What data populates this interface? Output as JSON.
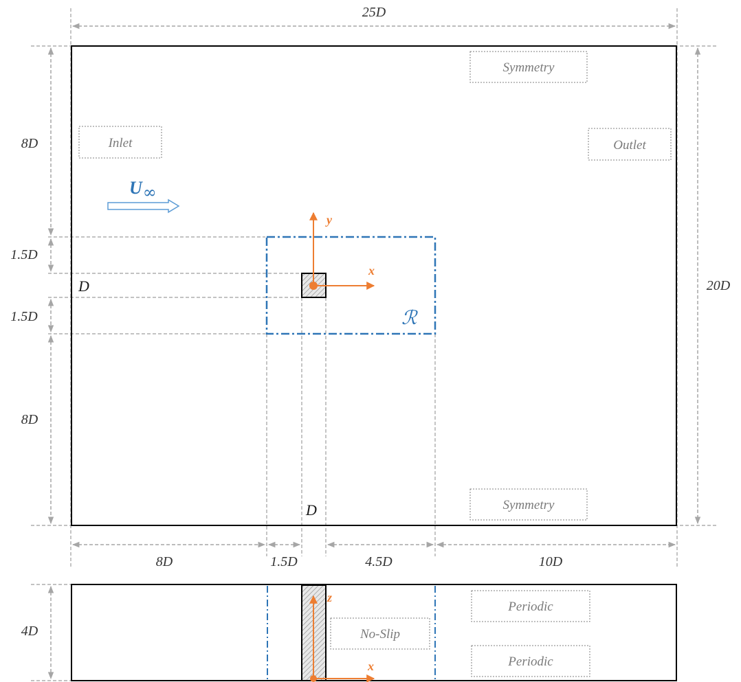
{
  "dimensions": {
    "domain_width": "25D",
    "domain_height": "20D",
    "upstream_height": "8D",
    "region_above": "1.5D",
    "cylinder_size_side": "D",
    "region_below": "1.5D",
    "downstream_height": "8D",
    "cylinder_size_bottom": "D",
    "inlet_length": "8D",
    "region_front": "1.5D",
    "region_behind": "4.5D",
    "outlet_length": "10D",
    "span_depth": "4D"
  },
  "boundaries": {
    "top": "Symmetry",
    "inlet": "Inlet",
    "outlet": "Outlet",
    "bottom": "Symmetry",
    "periodic_top": "Periodic",
    "periodic_bottom": "Periodic",
    "wall": "No-Slip"
  },
  "freestream": {
    "symbol": "U",
    "subscript": "∞"
  },
  "axes": {
    "x": "x",
    "y": "y",
    "z": "z",
    "x_side": "x"
  },
  "region": {
    "label": "ℛ"
  },
  "colors": {
    "accent_orange": "#ed7d31",
    "accent_blue": "#2e75b6",
    "dim_gray": "#a6a6a6",
    "frame": "#000000"
  }
}
